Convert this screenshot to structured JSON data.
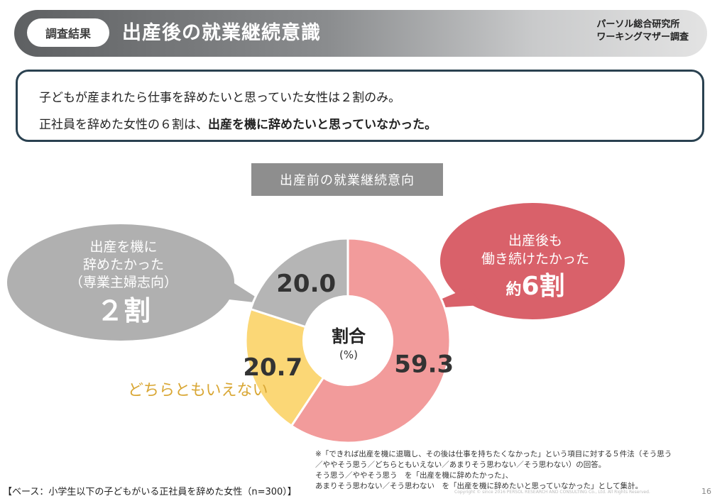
{
  "header": {
    "tag": "調査結果",
    "title": "出産後の就業継続意識",
    "source_line1": "パーソル総合研究所",
    "source_line2": "ワーキングマザー調査"
  },
  "summary": {
    "line1": "子どもが産まれたら仕事を辞めたいと思っていた女性は２割のみ。",
    "line2_prefix": "正社員を辞めた女性の６割は、",
    "line2_bold": "出産を機に辞めたいと思っていなかった。"
  },
  "chart_data": {
    "type": "pie",
    "title": "出産前の就業継続意向",
    "center_label": "割合",
    "center_unit": "(%)",
    "slices": [
      {
        "label": "出産後も働き続けたかった",
        "value": 59.3,
        "color": "#f29b9b"
      },
      {
        "label": "どちらともいえない",
        "value": 20.7,
        "color": "#fbd776"
      },
      {
        "label": "出産を機に辞めたかった（専業主婦志向）",
        "value": 20.0,
        "color": "#b5b5b5"
      }
    ],
    "value_labels": [
      "59.3",
      "20.7",
      "20.0"
    ]
  },
  "callouts": {
    "left_line1": "出産を機に",
    "left_line2": "辞めたかった",
    "left_line3": "（専業主婦志向）",
    "left_big": "２割",
    "right_line1": "出産後も",
    "right_line2": "働き続けたかった",
    "right_big_prefix": "約",
    "right_big": "6割",
    "neutral": "どちらともいえない"
  },
  "footnote": {
    "line1": "※「できれば出産を機に退職し、その後は仕事を持ちたくなかった」という項目に対する５件法（そう思う",
    "line2": "／ややそう思う／どちらともいえない／あまりそう思わない／そう思わない）の回答。",
    "line3": "そう思う／ややそう思う　を「出産を機に辞めたかった」、",
    "line4": "あまりそう思わない／そう思わない　を「出産を機に辞めたいと思っていなかった」として集計。"
  },
  "base_note": "【ベース：小学生以下の子どもがいる正社員を辞めた女性（n=300）】",
  "copyright": "Copyright © since 2016 PERSOL RESEARCH AND CONSULTING Co., Ltd. All Rights Reserved.",
  "page_number": "16",
  "colors": {
    "pink": "#f29b9b",
    "yellow": "#fbd776",
    "gray": "#b5b5b5",
    "left_bubble": "#b0b0b0",
    "right_bubble": "#d9616a",
    "neutral_text": "#d9a735"
  }
}
